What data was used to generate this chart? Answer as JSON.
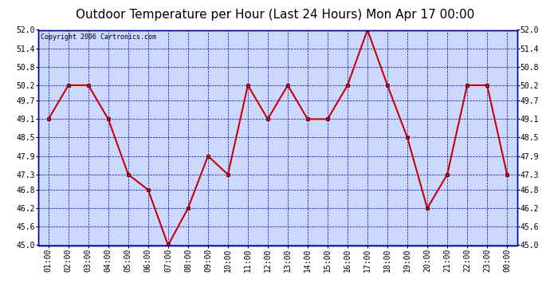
{
  "title": "Outdoor Temperature per Hour (Last 24 Hours) Mon Apr 17 00:00",
  "copyright_text": "Copyright 2006 Cartronics.com",
  "x_labels": [
    "01:00",
    "02:00",
    "03:00",
    "04:00",
    "05:00",
    "06:00",
    "07:00",
    "08:00",
    "09:00",
    "10:00",
    "11:00",
    "12:00",
    "13:00",
    "14:00",
    "15:00",
    "16:00",
    "17:00",
    "18:00",
    "19:00",
    "20:00",
    "21:00",
    "22:00",
    "23:00",
    "00:00"
  ],
  "y_values": [
    49.1,
    50.2,
    50.2,
    49.1,
    47.3,
    46.8,
    45.0,
    46.2,
    47.9,
    47.3,
    50.2,
    49.1,
    50.2,
    49.1,
    49.1,
    50.2,
    52.0,
    50.2,
    48.5,
    46.2,
    47.3,
    50.2,
    50.2,
    47.3
  ],
  "ylim_min": 45.0,
  "ylim_max": 52.0,
  "yticks": [
    45.0,
    45.6,
    46.2,
    46.8,
    47.3,
    47.9,
    48.5,
    49.1,
    49.7,
    50.2,
    50.8,
    51.4,
    52.0
  ],
  "line_color": "#cc0000",
  "marker_color": "#cc0000",
  "plot_bg_color": "#ccd9ff",
  "grid_color": "#0000cc",
  "border_color": "#0000aa",
  "title_fontsize": 11,
  "copyright_fontsize": 6,
  "tick_fontsize": 7,
  "marker_size": 3,
  "line_width": 1.5
}
